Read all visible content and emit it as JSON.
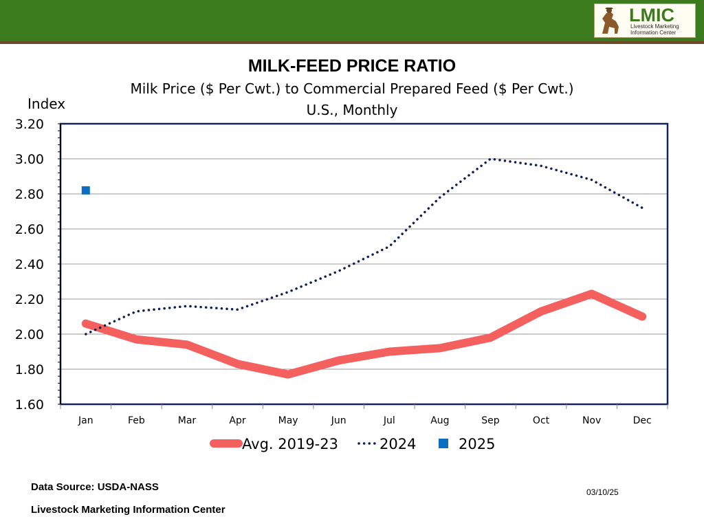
{
  "header": {
    "bar_color": "#3c7a1e",
    "logo": {
      "title": "LMIC",
      "subtitle_line1": "Livestock Marketing",
      "subtitle_line2": "Information Center"
    }
  },
  "chart_data": {
    "type": "line",
    "title": "MILK-FEED PRICE RATIO",
    "subtitle1": "Milk Price ($ Per Cwt.) to Commercial Prepared Feed ($ Per Cwt.)",
    "subtitle2": "U.S., Monthly",
    "ylabel": "Index",
    "xlabel": "",
    "ylim": [
      1.6,
      3.2
    ],
    "ytick_labels": [
      "1.60",
      "1.80",
      "2.00",
      "2.20",
      "2.40",
      "2.60",
      "2.80",
      "3.00",
      "3.20"
    ],
    "categories": [
      "Jan",
      "Feb",
      "Mar",
      "Apr",
      "May",
      "Jun",
      "Jul",
      "Aug",
      "Sep",
      "Oct",
      "Nov",
      "Dec"
    ],
    "grid": true,
    "legend_position": "bottom",
    "series": [
      {
        "name": "Avg. 2019-23",
        "style": "thick-solid",
        "color": "#f4605e",
        "values": [
          2.06,
          1.97,
          1.94,
          1.83,
          1.77,
          1.85,
          1.9,
          1.92,
          1.98,
          2.13,
          2.23,
          2.1
        ]
      },
      {
        "name": "2024",
        "style": "dotted",
        "color": "#0e1f56",
        "values": [
          2.0,
          2.13,
          2.16,
          2.14,
          2.24,
          2.36,
          2.5,
          2.78,
          3.0,
          2.96,
          2.88,
          2.72
        ]
      },
      {
        "name": "2025",
        "style": "square-marker",
        "color": "#0b6fc1",
        "values": [
          2.82,
          null,
          null,
          null,
          null,
          null,
          null,
          null,
          null,
          null,
          null,
          null
        ]
      }
    ]
  },
  "footer": {
    "source": "Data Source:  USDA-NASS",
    "org": "Livestock Marketing Information Center",
    "date": "03/10/25"
  }
}
